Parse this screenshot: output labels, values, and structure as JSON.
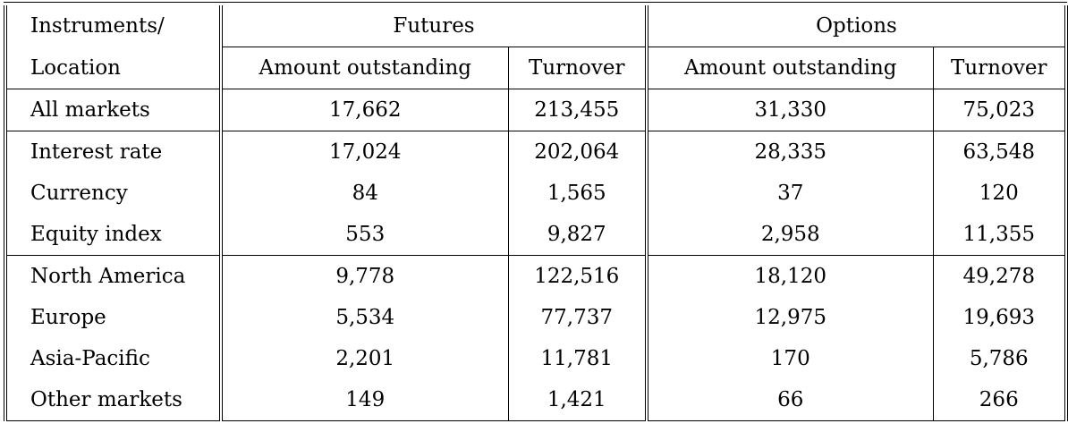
{
  "table": {
    "header": {
      "row_label_line1": "Instruments/",
      "row_label_line2": "Location",
      "groups": [
        "Futures",
        "Options"
      ],
      "subcolumns": [
        "Amount outstanding",
        "Turnover",
        "Amount outstanding",
        "Turnover"
      ]
    },
    "sections": [
      {
        "rows": [
          {
            "label": "All markets",
            "values": [
              "17,662",
              "213,455",
              "31,330",
              "75,023"
            ]
          }
        ]
      },
      {
        "rows": [
          {
            "label": "Interest rate",
            "values": [
              "17,024",
              "202,064",
              "28,335",
              "63,548"
            ]
          },
          {
            "label": "Currency",
            "values": [
              "84",
              "1,565",
              "37",
              "120"
            ]
          },
          {
            "label": "Equity index",
            "values": [
              "553",
              "9,827",
              "2,958",
              "11,355"
            ]
          }
        ]
      },
      {
        "rows": [
          {
            "label": "North America",
            "values": [
              "9,778",
              "122,516",
              "18,120",
              "49,278"
            ]
          },
          {
            "label": "Europe",
            "values": [
              "5,534",
              "77,737",
              "12,975",
              "19,693"
            ]
          },
          {
            "label": "Asia-Pacific",
            "values": [
              "2,201",
              "11,781",
              "170",
              "5,786"
            ]
          },
          {
            "label": "Other markets",
            "values": [
              "149",
              "1,421",
              "66",
              "266"
            ]
          }
        ]
      }
    ]
  }
}
